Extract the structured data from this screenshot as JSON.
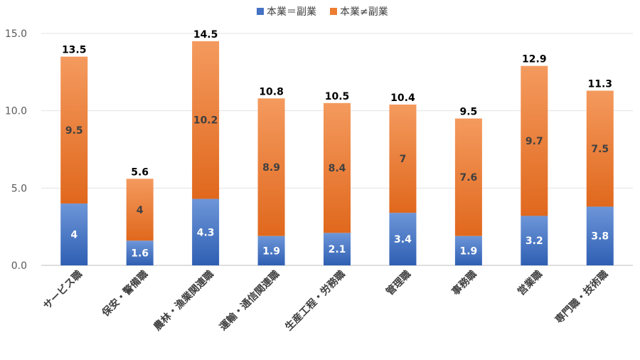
{
  "chart_data": {
    "type": "bar",
    "stacked": true,
    "categories": [
      "サービス職",
      "保安・警備職",
      "農林・漁業関連職",
      "運輸・通信関連職",
      "生産工程・労務職",
      "管理職",
      "事務職",
      "営業職",
      "専門職・技術職"
    ],
    "series": [
      {
        "name": "本業＝副業",
        "values": [
          4,
          1.6,
          4.3,
          1.9,
          2.1,
          3.4,
          1.9,
          3.2,
          3.8
        ],
        "labels": [
          "4",
          "1.6",
          "4.3",
          "1.9",
          "2.1",
          "3.4",
          "1.9",
          "3.2",
          "3.8"
        ]
      },
      {
        "name": "本業≠副業",
        "values": [
          9.5,
          4,
          10.2,
          8.9,
          8.4,
          7,
          7.6,
          9.7,
          7.5
        ],
        "labels": [
          "9.5",
          "4",
          "10.2",
          "8.9",
          "8.4",
          "7",
          "7.6",
          "9.7",
          "7.5"
        ]
      }
    ],
    "totals": [
      "13.5",
      "5.6",
      "14.5",
      "10.8",
      "10.5",
      "10.4",
      "9.5",
      "12.9",
      "11.3"
    ],
    "yticks": [
      "0.0",
      "5.0",
      "10.0",
      "15.0"
    ],
    "ylim": [
      0,
      15
    ],
    "grid": true,
    "legend": "top",
    "colors": {
      "series1": "#4472C4",
      "series2": "#ED7D31"
    }
  }
}
